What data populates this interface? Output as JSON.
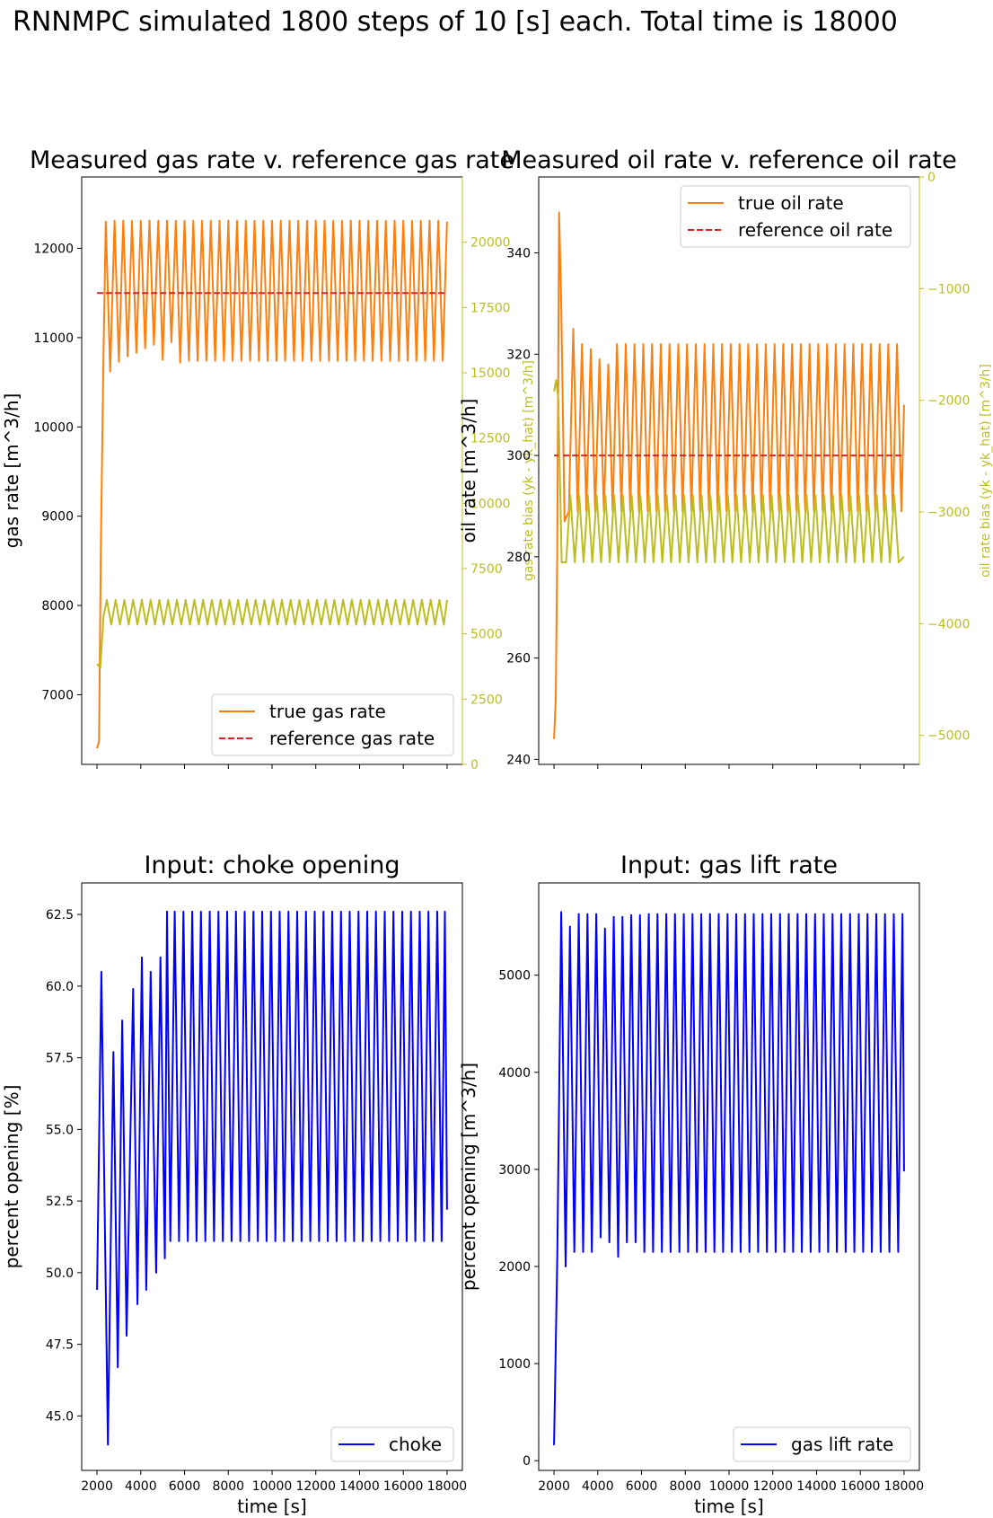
{
  "figure": {
    "suptitle": "RNNMPC simulated 1800 steps of 10 [s] each. Total time is 18000"
  },
  "colors": {
    "true_rate": "#ff7f0e",
    "reference": "#d62728",
    "bias": "#bcbd22",
    "input": "#0000ff",
    "axis": "#000000"
  },
  "chart_data": [
    {
      "id": "gas",
      "type": "line",
      "title": "Measured gas rate v. reference gas rate",
      "xlabel": "",
      "ylabel": "gas rate [m^3/h]",
      "y2label": "gas rate bias (yk - yk_hat) [m^3/h]",
      "xlim": [
        1300,
        18700
      ],
      "ylim": [
        6220,
        12800
      ],
      "y2lim": [
        0,
        22500
      ],
      "xticks": [
        2000,
        4000,
        6000,
        8000,
        10000,
        12000,
        14000,
        16000,
        18000
      ],
      "xtick_labels_visible": false,
      "yticks": [
        7000,
        8000,
        9000,
        10000,
        11000,
        12000
      ],
      "y2ticks": [
        0,
        2500,
        5000,
        7500,
        10000,
        12500,
        15000,
        17500,
        20000
      ],
      "legend_position": "lower-right",
      "series": [
        {
          "name": "true gas rate",
          "style": "solid",
          "axis": "left",
          "kind": "oscillation",
          "x_start": 2000,
          "x_end": 18000,
          "startup": [
            [
              2000,
              6400
            ],
            [
              2090,
              6480
            ],
            [
              2180,
              8700
            ],
            [
              2300,
              10900
            ],
            [
              2400,
              12300
            ]
          ],
          "period": 400,
          "high": 12310,
          "low": 10740,
          "end_value": 12300,
          "early_low": [
            10620,
            10730,
            10790,
            10830,
            10880,
            10920,
            10750,
            10950,
            10720
          ]
        },
        {
          "name": "reference gas rate",
          "style": "dashed",
          "axis": "left",
          "kind": "constant",
          "x_start": 2000,
          "x_end": 18000,
          "value": 11500
        },
        {
          "name": "gas rate bias",
          "style": "solid",
          "axis": "right",
          "kind": "oscillation",
          "x_start": 2000,
          "x_end": 18000,
          "startup": [
            [
              2000,
              3850
            ],
            [
              2150,
              3700
            ],
            [
              2300,
              5700
            ],
            [
              2450,
              6300
            ]
          ],
          "period": 400,
          "high": 6300,
          "low": 5350,
          "end_value": 6300
        }
      ]
    },
    {
      "id": "oil",
      "type": "line",
      "title": "Measured oil rate v. reference oil rate",
      "xlabel": "",
      "ylabel": "oil rate [m^3/h]",
      "y2label": "oil rate bias (yk - yk_hat) [m^3/h]",
      "xlim": [
        1300,
        18700
      ],
      "ylim": [
        239,
        355
      ],
      "y2lim": [
        -5260,
        0
      ],
      "xticks": [
        2000,
        4000,
        6000,
        8000,
        10000,
        12000,
        14000,
        16000,
        18000
      ],
      "xtick_labels_visible": false,
      "yticks": [
        240,
        260,
        280,
        300,
        320,
        340
      ],
      "y2ticks": [
        -5000,
        -4000,
        -3000,
        -2000,
        -1000,
        0
      ],
      "legend_position": "upper-right",
      "series": [
        {
          "name": "true oil rate",
          "style": "solid",
          "axis": "left",
          "kind": "oscillation",
          "x_start": 2000,
          "x_end": 18000,
          "startup": [
            [
              2000,
              244
            ],
            [
              2080,
              252
            ],
            [
              2150,
              282
            ],
            [
              2230,
              348
            ],
            [
              2330,
              330
            ],
            [
              2480,
              287
            ]
          ],
          "period": 400,
          "high": 322,
          "low": 289,
          "end_value": 310,
          "early_high": [
            325,
            322,
            321,
            319,
            318,
            322
          ]
        },
        {
          "name": "reference oil rate",
          "style": "dashed",
          "axis": "left",
          "kind": "constant",
          "x_start": 2000,
          "x_end": 18000,
          "value": 300
        },
        {
          "name": "oil rate bias",
          "style": "solid",
          "axis": "right",
          "kind": "oscillation",
          "x_start": 2000,
          "x_end": 18000,
          "startup": [
            [
              2000,
              -1920
            ],
            [
              2100,
              -1820
            ],
            [
              2200,
              -2000
            ],
            [
              2350,
              -3450
            ]
          ],
          "period": 400,
          "high": -2850,
          "low": -3450,
          "end_value": -3400
        }
      ]
    },
    {
      "id": "choke",
      "type": "line",
      "title": "Input: choke opening",
      "xlabel": "time [s]",
      "ylabel": "percent opening [%]",
      "xlim": [
        1300,
        18700
      ],
      "ylim": [
        43.1,
        63.6
      ],
      "xticks": [
        2000,
        4000,
        6000,
        8000,
        10000,
        12000,
        14000,
        16000,
        18000
      ],
      "xtick_labels_visible": true,
      "yticks": [
        45.0,
        47.5,
        50.0,
        52.5,
        55.0,
        57.5,
        60.0,
        62.5
      ],
      "tick_decimals": 1,
      "legend_position": "lower-right",
      "series": [
        {
          "name": "choke",
          "style": "solid",
          "axis": "left",
          "kind": "polyline",
          "points": [
            [
              2000,
              49.4
            ],
            [
              2200,
              60.5
            ],
            [
              2500,
              44.0
            ],
            [
              2750,
              57.7
            ],
            [
              2950,
              46.7
            ],
            [
              3150,
              58.8
            ],
            [
              3350,
              47.8
            ],
            [
              3650,
              59.9
            ],
            [
              3850,
              48.9
            ],
            [
              4050,
              61.0
            ],
            [
              4250,
              49.4
            ],
            [
              4450,
              60.5
            ],
            [
              4700,
              50.0
            ],
            [
              4900,
              61.0
            ],
            [
              5100,
              50.5
            ],
            [
              5200,
              62.6
            ],
            [
              5350,
              51.1
            ],
            [
              5550,
              62.6
            ],
            [
              5750,
              51.1
            ],
            [
              5950,
              62.6
            ],
            [
              6150,
              51.1
            ],
            [
              6350,
              62.6
            ],
            [
              6550,
              51.1
            ],
            [
              6750,
              62.6
            ],
            [
              6950,
              51.1
            ],
            [
              7150,
              62.6
            ],
            [
              7350,
              51.1
            ],
            [
              7550,
              62.6
            ],
            [
              7750,
              51.1
            ],
            [
              7950,
              62.6
            ],
            [
              8150,
              51.1
            ],
            [
              8350,
              62.6
            ],
            [
              8550,
              51.1
            ],
            [
              8750,
              62.6
            ],
            [
              8950,
              51.1
            ],
            [
              9150,
              62.6
            ],
            [
              9350,
              51.1
            ],
            [
              9550,
              62.6
            ],
            [
              9750,
              51.1
            ],
            [
              9950,
              62.6
            ],
            [
              10150,
              51.1
            ],
            [
              10350,
              62.6
            ],
            [
              10550,
              51.1
            ],
            [
              10750,
              62.6
            ],
            [
              10950,
              51.1
            ],
            [
              11150,
              62.6
            ],
            [
              11350,
              51.1
            ],
            [
              11550,
              62.6
            ],
            [
              11750,
              51.1
            ],
            [
              11950,
              62.6
            ],
            [
              12150,
              51.1
            ],
            [
              12350,
              62.6
            ],
            [
              12550,
              51.1
            ],
            [
              12750,
              62.6
            ],
            [
              12950,
              51.1
            ],
            [
              13150,
              62.6
            ],
            [
              13350,
              51.1
            ],
            [
              13550,
              62.6
            ],
            [
              13750,
              51.1
            ],
            [
              13950,
              62.6
            ],
            [
              14150,
              51.1
            ],
            [
              14350,
              62.6
            ],
            [
              14550,
              51.1
            ],
            [
              14750,
              62.6
            ],
            [
              14950,
              51.1
            ],
            [
              15150,
              62.6
            ],
            [
              15350,
              51.1
            ],
            [
              15550,
              62.6
            ],
            [
              15750,
              51.1
            ],
            [
              15950,
              62.6
            ],
            [
              16150,
              51.1
            ],
            [
              16350,
              62.6
            ],
            [
              16550,
              51.1
            ],
            [
              16750,
              62.6
            ],
            [
              16950,
              51.1
            ],
            [
              17150,
              62.6
            ],
            [
              17350,
              51.1
            ],
            [
              17550,
              62.6
            ],
            [
              17750,
              51.1
            ],
            [
              17900,
              62.6
            ],
            [
              18000,
              52.2
            ]
          ]
        }
      ]
    },
    {
      "id": "gaslift",
      "type": "line",
      "title": "Input: gas lift rate",
      "xlabel": "time [s]",
      "ylabel": "percent opening [m^3/h]",
      "xlim": [
        1300,
        18700
      ],
      "ylim": [
        -100,
        5950
      ],
      "xticks": [
        2000,
        4000,
        6000,
        8000,
        10000,
        12000,
        14000,
        16000,
        18000
      ],
      "xtick_labels_visible": true,
      "yticks": [
        0,
        1000,
        2000,
        3000,
        4000,
        5000
      ],
      "legend_position": "lower-right",
      "series": [
        {
          "name": "gas lift rate",
          "style": "solid",
          "axis": "left",
          "kind": "polyline",
          "points": [
            [
              2000,
              160
            ],
            [
              2150,
              2100
            ],
            [
              2330,
              5650
            ],
            [
              2530,
              2000
            ],
            [
              2730,
              5500
            ],
            [
              2930,
              2150
            ],
            [
              3130,
              5630
            ],
            [
              3330,
              2150
            ],
            [
              3530,
              5630
            ],
            [
              3730,
              2150
            ],
            [
              3930,
              5630
            ],
            [
              4130,
              2300
            ],
            [
              4330,
              5480
            ],
            [
              4530,
              2250
            ],
            [
              4730,
              5600
            ],
            [
              4930,
              2100
            ],
            [
              5130,
              5600
            ],
            [
              5330,
              2250
            ],
            [
              5530,
              5620
            ],
            [
              5730,
              2250
            ],
            [
              5930,
              5620
            ],
            [
              6130,
              2150
            ],
            [
              6330,
              5630
            ],
            [
              6530,
              2150
            ],
            [
              6730,
              5630
            ],
            [
              6930,
              2150
            ],
            [
              7130,
              5630
            ],
            [
              7330,
              2150
            ],
            [
              7530,
              5630
            ],
            [
              7730,
              2150
            ],
            [
              7930,
              5630
            ],
            [
              8130,
              2150
            ],
            [
              8330,
              5630
            ],
            [
              8530,
              2150
            ],
            [
              8730,
              5630
            ],
            [
              8930,
              2150
            ],
            [
              9130,
              5630
            ],
            [
              9330,
              2150
            ],
            [
              9530,
              5630
            ],
            [
              9730,
              2150
            ],
            [
              9930,
              5630
            ],
            [
              10130,
              2150
            ],
            [
              10330,
              5630
            ],
            [
              10530,
              2150
            ],
            [
              10730,
              5630
            ],
            [
              10930,
              2150
            ],
            [
              11130,
              5630
            ],
            [
              11330,
              2150
            ],
            [
              11530,
              5630
            ],
            [
              11730,
              2150
            ],
            [
              11930,
              5630
            ],
            [
              12130,
              2150
            ],
            [
              12330,
              5630
            ],
            [
              12530,
              2150
            ],
            [
              12730,
              5630
            ],
            [
              12930,
              2150
            ],
            [
              13130,
              5630
            ],
            [
              13330,
              2150
            ],
            [
              13530,
              5630
            ],
            [
              13730,
              2150
            ],
            [
              13930,
              5630
            ],
            [
              14130,
              2150
            ],
            [
              14330,
              5630
            ],
            [
              14530,
              2150
            ],
            [
              14730,
              5630
            ],
            [
              14930,
              2150
            ],
            [
              15130,
              5630
            ],
            [
              15330,
              2150
            ],
            [
              15530,
              5630
            ],
            [
              15730,
              2150
            ],
            [
              15930,
              5630
            ],
            [
              16130,
              2150
            ],
            [
              16330,
              5630
            ],
            [
              16530,
              2150
            ],
            [
              16730,
              5630
            ],
            [
              16930,
              2150
            ],
            [
              17130,
              5630
            ],
            [
              17330,
              2150
            ],
            [
              17530,
              5630
            ],
            [
              17730,
              2150
            ],
            [
              17930,
              5630
            ],
            [
              18000,
              2980
            ]
          ]
        }
      ]
    }
  ]
}
